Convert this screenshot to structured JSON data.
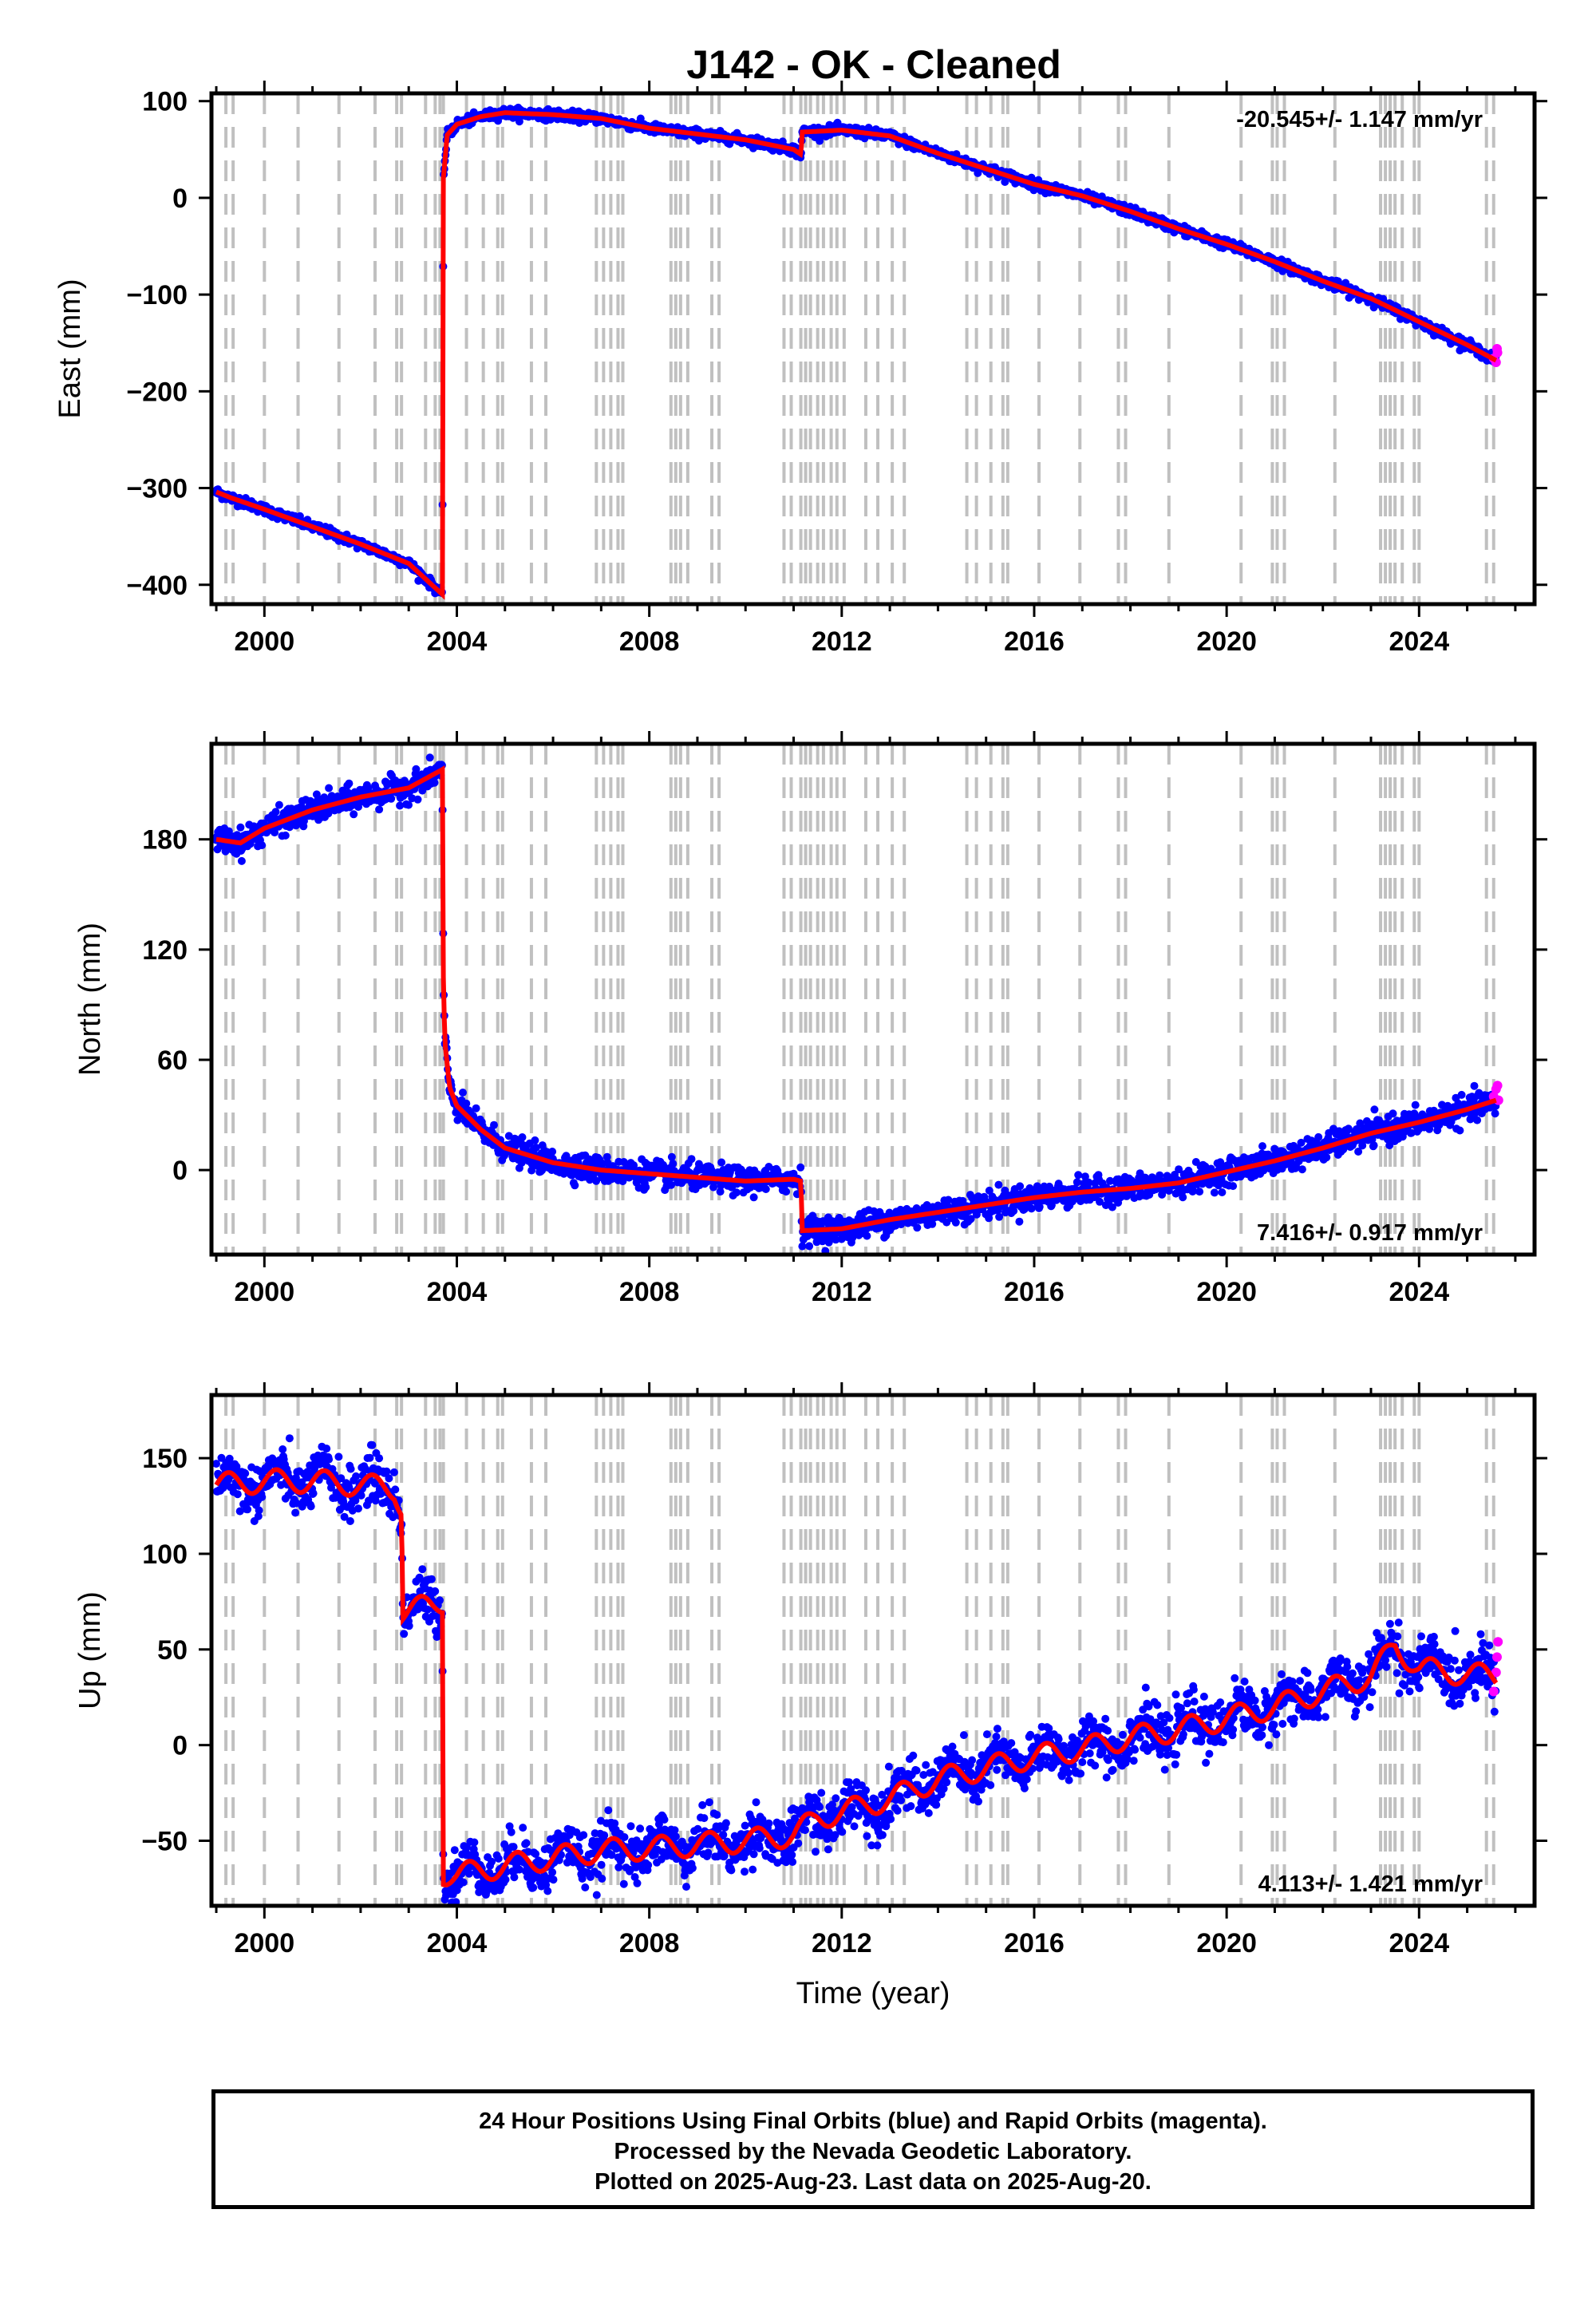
{
  "title": "J142  - OK - Cleaned",
  "colors": {
    "final": "#0000ff",
    "rapid": "#ff00ff",
    "model": "#ff0000",
    "steps": "#c0c0c0"
  },
  "chart_data": {
    "type": "scatter",
    "step_epochs": [
      1999.2,
      1999.35,
      2000.0,
      2000.7,
      2001.55,
      2002.3,
      2002.75,
      2002.85,
      2003.35,
      2003.55,
      2003.65,
      2003.72,
      2004.2,
      2004.55,
      2004.85,
      2004.95,
      2005.55,
      2005.85,
      2006.9,
      2007.05,
      2007.2,
      2007.35,
      2007.45,
      2008.45,
      2008.55,
      2008.65,
      2008.8,
      2009.3,
      2009.45,
      2010.8,
      2010.95,
      2011.15,
      2011.25,
      2011.35,
      2011.5,
      2011.62,
      2011.78,
      2011.9,
      2012.05,
      2012.5,
      2012.75,
      2013.05,
      2013.3,
      2014.6,
      2014.8,
      2015.1,
      2015.35,
      2015.45,
      2016.1,
      2016.95,
      2017.75,
      2017.9,
      2018.8,
      2020.3,
      2020.95,
      2021.05,
      2021.2,
      2022.25,
      2023.2,
      2023.3,
      2023.4,
      2023.5,
      2023.65,
      2023.9,
      2024.0,
      2025.4,
      2025.55
    ],
    "panels": [
      {
        "id": "east",
        "ylabel": "East (mm)",
        "xlabel": "",
        "ylim": [
          -420,
          108
        ],
        "xlim": [
          1998.9,
          2026.4
        ],
        "yticks": [
          -400,
          -300,
          -200,
          -100,
          0,
          100
        ],
        "xticks": [
          2000,
          2004,
          2008,
          2012,
          2016,
          2020,
          2024
        ],
        "rate_text": "-20.545+/- 1.147 mm/yr",
        "rate_position": "top-right",
        "model_x": [
          1999.0,
          1999.3,
          2000.0,
          2001.0,
          2002.0,
          2003.0,
          2003.7,
          2003.72,
          2003.8,
          2004.0,
          2004.5,
          2005.0,
          2006.0,
          2007.0,
          2008.0,
          2009.0,
          2010.0,
          2011.0,
          2011.15,
          2011.18,
          2012.0,
          2013.0,
          2014.0,
          2015.0,
          2016.0,
          2017.0,
          2018.0,
          2019.0,
          2020.0,
          2021.0,
          2022.0,
          2023.0,
          2024.0,
          2025.0,
          2025.6
        ],
        "model_y": [
          -304,
          -310,
          -322,
          -340,
          -358,
          -378,
          -410,
          20,
          65,
          76,
          84,
          88,
          86,
          82,
          72,
          66,
          60,
          50,
          45,
          68,
          70,
          64,
          46,
          30,
          14,
          2,
          -14,
          -32,
          -48,
          -66,
          -86,
          -104,
          -128,
          -152,
          -168
        ],
        "noise": 2.5,
        "rapid_x": [
          2025.55,
          2025.6,
          2025.63,
          2025.62
        ],
        "rapid_y": [
          -166,
          -170,
          -160,
          -156
        ]
      },
      {
        "id": "north",
        "ylabel": "North (mm)",
        "xlabel": "",
        "ylim": [
          -46,
          232
        ],
        "xlim": [
          1998.9,
          2026.4
        ],
        "yticks": [
          0,
          60,
          120,
          180
        ],
        "xticks": [
          2000,
          2004,
          2008,
          2012,
          2016,
          2020,
          2024
        ],
        "rate_text": "7.416+/- 0.917 mm/yr",
        "rate_position": "bottom-right",
        "model_x": [
          1999.0,
          1999.5,
          2000.0,
          2001.0,
          2002.0,
          2003.0,
          2003.7,
          2003.72,
          2003.75,
          2003.85,
          2004.0,
          2004.5,
          2005.0,
          2006.0,
          2007.0,
          2008.0,
          2009.0,
          2010.0,
          2011.0,
          2011.15,
          2011.18,
          2012.0,
          2013.0,
          2014.0,
          2015.0,
          2016.0,
          2017.0,
          2018.0,
          2019.0,
          2020.0,
          2021.0,
          2022.0,
          2023.0,
          2024.0,
          2025.0,
          2025.6
        ],
        "model_y": [
          180,
          178,
          186,
          196,
          203,
          208,
          218,
          105,
          70,
          45,
          35,
          22,
          12,
          4,
          0,
          -2,
          -4,
          -6,
          -5,
          -6,
          -33,
          -32,
          -27,
          -23,
          -19,
          -15,
          -12,
          -10,
          -7,
          -1,
          5,
          12,
          20,
          26,
          33,
          38
        ],
        "noise": 3.5,
        "rapid_x": [
          2025.55,
          2025.6,
          2025.63,
          2025.65
        ],
        "rapid_y": [
          40,
          44,
          46,
          38
        ],
        "xlabel_visible": false
      },
      {
        "id": "up",
        "ylabel": "Up (mm)",
        "xlabel": "Time (year)",
        "ylim": [
          -84,
          183
        ],
        "xlim": [
          1998.9,
          2026.4
        ],
        "yticks": [
          -50,
          0,
          50,
          100,
          150
        ],
        "xticks": [
          2000,
          2004,
          2008,
          2012,
          2016,
          2020,
          2024
        ],
        "rate_text": "4.113+/- 1.421 mm/yr",
        "rate_position": "bottom-right",
        "model_x": [
          1999.0,
          2000.0,
          2001.0,
          2002.0,
          2002.7,
          2002.85,
          2002.88,
          2003.5,
          2003.7,
          2003.72,
          2004.0,
          2005.0,
          2006.0,
          2007.0,
          2008.0,
          2009.0,
          2010.0,
          2011.0,
          2011.5,
          2012.0,
          2013.0,
          2014.0,
          2015.0,
          2016.0,
          2017.0,
          2018.0,
          2019.0,
          2020.0,
          2021.0,
          2022.0,
          2023.0,
          2023.5,
          2024.0,
          2025.0,
          2025.6
        ],
        "model_y": [
          136,
          138,
          138,
          136,
          134,
          125,
          70,
          73,
          75,
          -67,
          -68,
          -63,
          -59,
          -55,
          -54,
          -52,
          -50,
          -47,
          -38,
          -35,
          -28,
          -18,
          -12,
          -6,
          -2,
          4,
          8,
          14,
          20,
          28,
          36,
          52,
          40,
          37,
          36
        ],
        "noise": 6.5,
        "seasonal": 6,
        "rapid_x": [
          2025.55,
          2025.6,
          2025.62,
          2025.64
        ],
        "rapid_y": [
          28,
          38,
          46,
          54
        ]
      }
    ]
  },
  "footer": {
    "line1": "24 Hour Positions Using Final Orbits (blue) and Rapid Orbits (magenta).",
    "line2": "Processed by the Nevada Geodetic Laboratory.",
    "line3": "Plotted on 2025-Aug-23. Last data on 2025-Aug-20."
  }
}
